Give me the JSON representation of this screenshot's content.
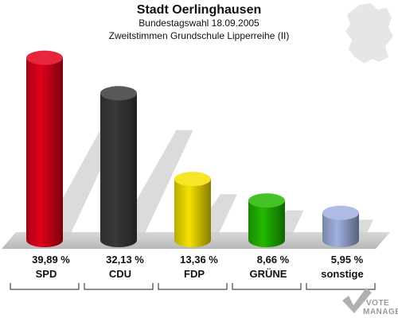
{
  "chart_data": {
    "type": "bar",
    "title": "Stadt Oerlinghausen",
    "subtitle_lines": [
      "Bundestagswahl 18.09.2005",
      "Zweitstimmen Grundschule Lipperreihe (II)"
    ],
    "categories": [
      "SPD",
      "CDU",
      "FDP",
      "GRÜNE",
      "sonstige"
    ],
    "values": [
      39.89,
      32.13,
      13.36,
      8.66,
      5.95
    ],
    "value_labels": [
      "39,89 %",
      "32,13 %",
      "13,36 %",
      "8,66 %",
      "5,95 %"
    ],
    "colors": [
      "#e0001a",
      "#3a3a3a",
      "#f5e200",
      "#22b800",
      "#a0b0e0"
    ],
    "ylim": [
      0,
      40
    ],
    "grid": false,
    "legend": "none"
  },
  "branding": {
    "logo_line1": "VOTE",
    "logo_line2": "MANAGER"
  }
}
